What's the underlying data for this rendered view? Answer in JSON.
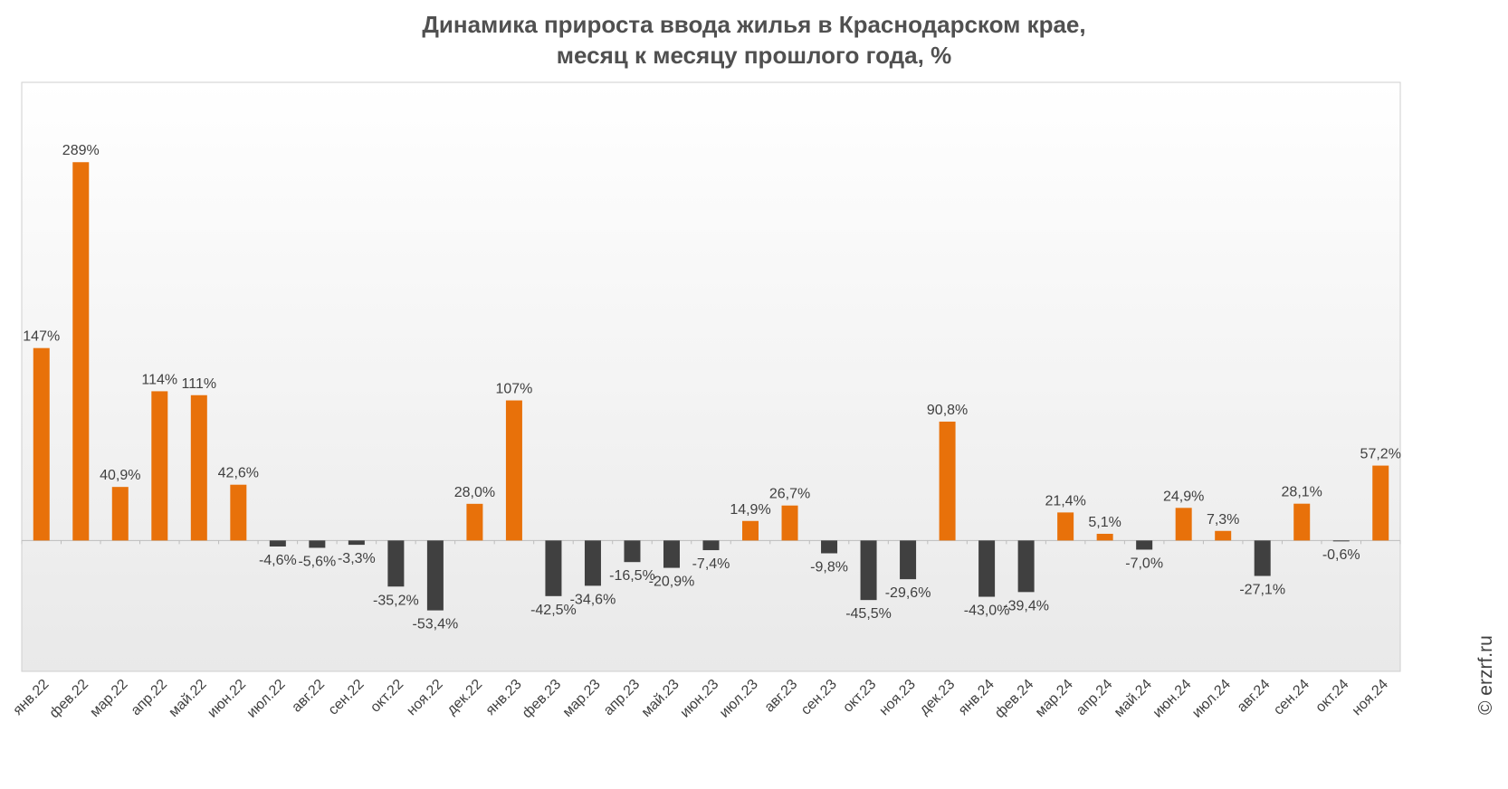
{
  "chart_data": {
    "type": "bar",
    "title": [
      "Динамика прироста ввода жилья в Краснодарском крае,",
      "месяц к месяцу прошлого года, %"
    ],
    "xlabel": "",
    "ylabel": "",
    "categories": [
      "янв.22",
      "фев.22",
      "мар.22",
      "апр.22",
      "май.22",
      "июн.22",
      "июл.22",
      "авг.22",
      "сен.22",
      "окт.22",
      "ноя.22",
      "дек.22",
      "янв.23",
      "фев.23",
      "мар.23",
      "апр.23",
      "май.23",
      "июн.23",
      "июл.23",
      "авг.23",
      "сен.23",
      "окт.23",
      "ноя.23",
      "дек.23",
      "янв.24",
      "фев.24",
      "мар.24",
      "апр.24",
      "май.24",
      "июн.24",
      "июл.24",
      "авг.24",
      "сен.24",
      "окт.24",
      "ноя.24"
    ],
    "values": [
      147,
      289,
      40.9,
      114,
      111,
      42.6,
      -4.6,
      -5.6,
      -3.3,
      -35.2,
      -53.4,
      28.0,
      107,
      -42.5,
      -34.6,
      -16.5,
      -20.9,
      -7.4,
      14.9,
      26.7,
      -9.8,
      -45.5,
      -29.6,
      90.8,
      -43.0,
      -39.4,
      21.4,
      5.1,
      -7.0,
      24.9,
      7.3,
      -27.1,
      28.1,
      -0.6,
      57.2
    ],
    "data_labels": [
      "147%",
      "289%",
      "40,9%",
      "114%",
      "111%",
      "42,6%",
      "-4,6%",
      "-5,6%",
      "-3,3%",
      "-35,2%",
      "-53,4%",
      "28,0%",
      "107%",
      "-42,5%",
      "-34,6%",
      "-16,5%",
      "-20,9%",
      "-7,4%",
      "14,9%",
      "26,7%",
      "-9,8%",
      "-45,5%",
      "-29,6%",
      "90,8%",
      "-43,0%",
      "-39,4%",
      "21,4%",
      "5,1%",
      "-7,0%",
      "24,9%",
      "7,3%",
      "-27,1%",
      "28,1%",
      "-0,6%",
      "57,2%"
    ],
    "ylim": [
      -100,
      350
    ],
    "grid": false,
    "legend": "none",
    "colors": {
      "positive": "#E8710A",
      "negative": "#404040"
    }
  },
  "watermark": "© erzrf.ru"
}
